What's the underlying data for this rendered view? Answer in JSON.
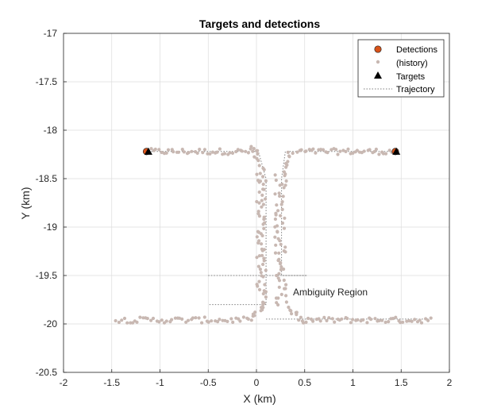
{
  "chart_data": {
    "type": "scatter",
    "title": "Targets and detections",
    "xlabel": "X (km)",
    "ylabel": "Y (km)",
    "xlim": [
      -2,
      2
    ],
    "ylim": [
      -20.5,
      -17
    ],
    "xticks": [
      -2,
      -1.5,
      -1,
      -0.5,
      0,
      0.5,
      1,
      1.5,
      2
    ],
    "xtick_labels": [
      "-2",
      "-1.5",
      "-1",
      "-0.5",
      "0",
      "0.5",
      "1",
      "1.5",
      "2"
    ],
    "yticks": [
      -20.5,
      -20,
      -19.5,
      -19,
      -18.5,
      -18,
      -17.5,
      -17
    ],
    "ytick_labels": [
      "-20.5",
      "-20",
      "-19.5",
      "-19",
      "-18.5",
      "-18",
      "-17.5",
      "-17"
    ],
    "grid": true,
    "legend_position": "top-right",
    "legend": [
      "Detections",
      "(history)",
      "Targets",
      "Trajectory"
    ],
    "annotation": "Ambiguity Region",
    "colors": {
      "detections": "#d95319",
      "history": "#c8b8b2",
      "targets": "#000000",
      "trajectory": "#7f7f7f",
      "grid": "#dcdcdc"
    },
    "series": [
      {
        "name": "Detections",
        "points": [
          [
            -1.14,
            -18.22
          ],
          [
            1.44,
            -18.22
          ]
        ]
      },
      {
        "name": "Targets",
        "points": [
          [
            -1.12,
            -18.22
          ],
          [
            1.45,
            -18.22
          ]
        ]
      },
      {
        "name": "Trajectory",
        "lines": [
          [
            [
              -1.12,
              -18.22
            ],
            [
              0.02,
              -18.22
            ],
            [
              0.1,
              -18.5
            ],
            [
              0.1,
              -19.5
            ],
            [
              0.1,
              -19.8
            ],
            [
              -0.5,
              -19.8
            ]
          ],
          [
            [
              1.45,
              -18.22
            ],
            [
              0.3,
              -18.22
            ],
            [
              0.26,
              -18.5
            ],
            [
              0.26,
              -19.5
            ],
            [
              0.52,
              -19.5
            ]
          ],
          [
            [
              -0.5,
              -19.5
            ],
            [
              0.52,
              -19.5
            ]
          ],
          [
            [
              0.1,
              -19.95
            ],
            [
              1.8,
              -19.95
            ]
          ]
        ]
      },
      {
        "name": "(history)",
        "segments": [
          {
            "from": [
              -1.12,
              -18.22
            ],
            "to": [
              0.02,
              -18.22
            ],
            "count": 44,
            "jx": 0.01,
            "jy": 0.03
          },
          {
            "from": [
              0.42,
              -18.22
            ],
            "to": [
              1.45,
              -18.22
            ],
            "count": 42,
            "jx": 0.01,
            "jy": 0.03
          },
          {
            "from": [
              -0.03,
              -18.2
            ],
            "to": [
              0.08,
              -18.45
            ],
            "count": 10,
            "jx": 0.03,
            "jy": 0.04
          },
          {
            "from": [
              0.36,
              -18.2
            ],
            "to": [
              0.27,
              -18.45
            ],
            "count": 10,
            "jx": 0.03,
            "jy": 0.04
          },
          {
            "from": [
              0.05,
              -18.45
            ],
            "to": [
              0.05,
              -19.8
            ],
            "count": 60,
            "jx": 0.05,
            "jy": 0.03
          },
          {
            "from": [
              0.25,
              -18.45
            ],
            "to": [
              0.25,
              -19.8
            ],
            "count": 60,
            "jx": 0.06,
            "jy": 0.03
          },
          {
            "from": [
              0.07,
              -19.8
            ],
            "to": [
              -0.05,
              -19.93
            ],
            "count": 8,
            "jx": 0.03,
            "jy": 0.03
          },
          {
            "from": [
              0.3,
              -19.8
            ],
            "to": [
              0.45,
              -19.95
            ],
            "count": 10,
            "jx": 0.03,
            "jy": 0.03
          },
          {
            "from": [
              -1.45,
              -19.96
            ],
            "to": [
              -0.05,
              -19.96
            ],
            "count": 52,
            "jx": 0.01,
            "jy": 0.03
          },
          {
            "from": [
              0.45,
              -19.96
            ],
            "to": [
              1.8,
              -19.96
            ],
            "count": 50,
            "jx": 0.01,
            "jy": 0.03
          }
        ]
      }
    ]
  }
}
